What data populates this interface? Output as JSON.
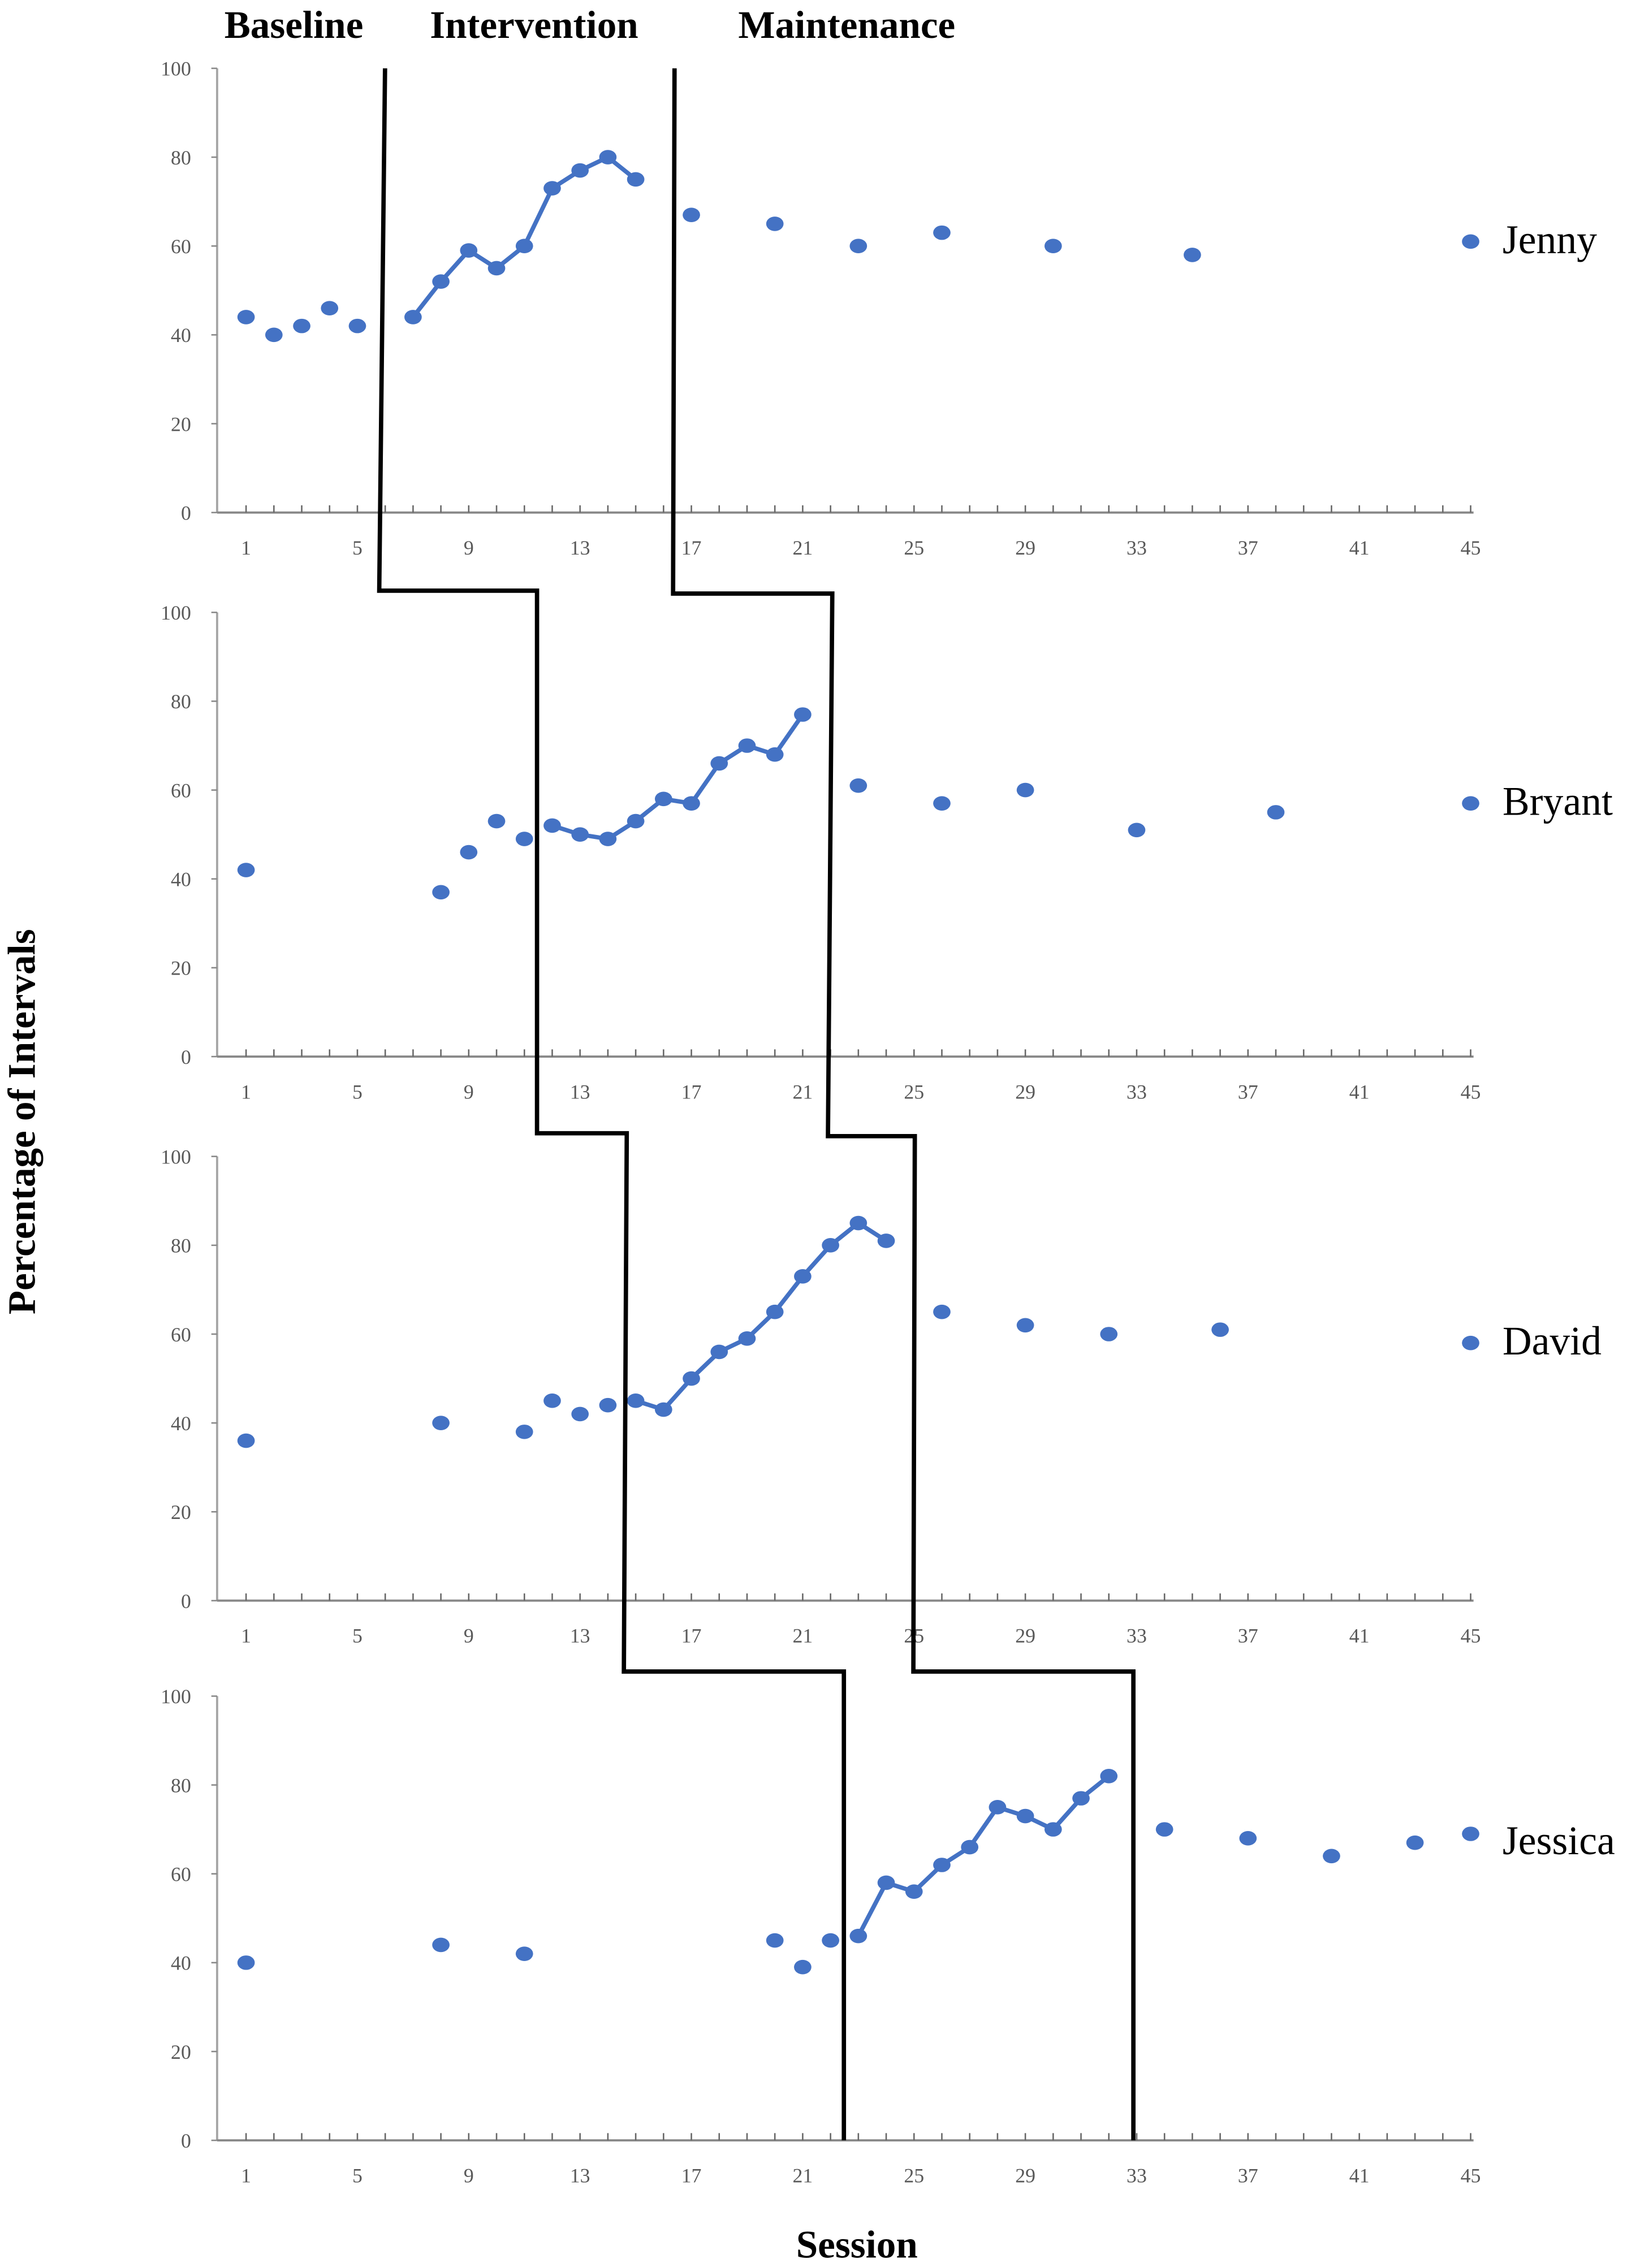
{
  "chart_data": {
    "type": "scatter",
    "title": "",
    "xlabel": "Session",
    "ylabel": "Percentage of Intervals",
    "phases": [
      "Baseline",
      "Intervention",
      "Maintenance"
    ],
    "xlim": [
      1,
      45
    ],
    "ylim": [
      0,
      100
    ],
    "x_ticks": [
      1,
      5,
      9,
      13,
      17,
      21,
      25,
      29,
      33,
      37,
      41,
      45
    ],
    "y_ticks": [
      0,
      20,
      40,
      60,
      80,
      100
    ],
    "color": "#4472C4",
    "panels": [
      {
        "name": "Jenny",
        "baseline": {
          "x": [
            1,
            2,
            3,
            4,
            5
          ],
          "y": [
            44,
            40,
            42,
            46,
            42
          ]
        },
        "intervention": {
          "x": [
            7,
            8,
            9,
            10,
            11,
            12,
            13,
            14,
            15
          ],
          "y": [
            44,
            52,
            59,
            55,
            60,
            73,
            77,
            80,
            75
          ]
        },
        "maintenance": {
          "x": [
            17,
            20,
            23,
            26,
            30,
            35,
            45
          ],
          "y": [
            67,
            65,
            60,
            63,
            60,
            58,
            61
          ]
        }
      },
      {
        "name": "Bryant",
        "baseline": {
          "x": [
            1,
            8,
            9,
            10,
            11
          ],
          "y": [
            42,
            37,
            46,
            53,
            49
          ]
        },
        "intervention": {
          "x": [
            12,
            13,
            14,
            15,
            16,
            17,
            18,
            19,
            20,
            21
          ],
          "y": [
            52,
            50,
            49,
            53,
            58,
            57,
            66,
            70,
            68,
            77
          ]
        },
        "maintenance": {
          "x": [
            23,
            26,
            29,
            33,
            38,
            45
          ],
          "y": [
            61,
            57,
            60,
            51,
            55,
            57
          ]
        }
      },
      {
        "name": "David",
        "baseline": {
          "x": [
            1,
            8,
            11,
            12,
            13,
            14
          ],
          "y": [
            36,
            40,
            38,
            45,
            42,
            44
          ]
        },
        "intervention": {
          "x": [
            15,
            16,
            17,
            18,
            19,
            20,
            21,
            22,
            23,
            24
          ],
          "y": [
            45,
            43,
            50,
            56,
            59,
            65,
            73,
            80,
            85,
            81
          ]
        },
        "maintenance": {
          "x": [
            26,
            29,
            32,
            36,
            45
          ],
          "y": [
            65,
            62,
            60,
            61,
            58
          ]
        }
      },
      {
        "name": "Jessica",
        "baseline": {
          "x": [
            1,
            8,
            11,
            20,
            21,
            22
          ],
          "y": [
            40,
            44,
            42,
            45,
            39,
            45
          ]
        },
        "intervention": {
          "x": [
            23,
            24,
            25,
            26,
            27,
            28,
            29,
            30,
            31,
            32
          ],
          "y": [
            46,
            58,
            56,
            62,
            66,
            75,
            73,
            70,
            77,
            82
          ]
        },
        "maintenance": {
          "x": [
            34,
            37,
            40,
            43,
            45
          ],
          "y": [
            70,
            68,
            64,
            67,
            69
          ]
        }
      }
    ]
  }
}
